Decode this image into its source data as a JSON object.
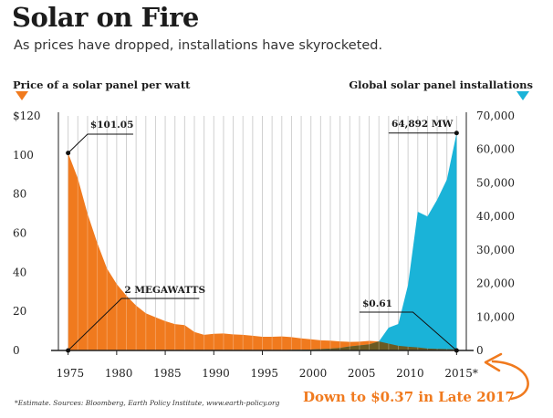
{
  "title": "Solar on Fire",
  "subtitle": "As prices have dropped, installations have skyrocketed.",
  "footnote": "*Estimate. Sources: Bloomberg, Earth Policy Institute, www.earth-policy.org",
  "colors": {
    "price": "#f07a1e",
    "installs": "#1ab3d8",
    "overlap": "#6b5a22",
    "grid": "#d0d0d0",
    "axis": "#222222"
  },
  "chart_data": {
    "type": "area",
    "x_labels": [
      "1975",
      "1980",
      "1985",
      "1990",
      "1995",
      "2000",
      "2005",
      "2010",
      "2015*"
    ],
    "x": [
      1975,
      1976,
      1977,
      1978,
      1979,
      1980,
      1981,
      1982,
      1983,
      1984,
      1985,
      1986,
      1987,
      1988,
      1989,
      1990,
      1991,
      1992,
      1993,
      1994,
      1995,
      1996,
      1997,
      1998,
      1999,
      2000,
      2001,
      2002,
      2003,
      2004,
      2005,
      2006,
      2007,
      2008,
      2009,
      2010,
      2011,
      2012,
      2013,
      2014,
      2015
    ],
    "xlim": [
      1974,
      2016
    ],
    "series": [
      {
        "name": "Price of a solar panel per watt",
        "legend_marker_color": "#f07a1e",
        "axis": "left",
        "ylim": [
          0,
          120
        ],
        "y_ticks": [
          "$120",
          "100",
          "80",
          "60",
          "40",
          "20",
          "0"
        ],
        "values": [
          101.05,
          88,
          70,
          55,
          42,
          34,
          28,
          23,
          19,
          17,
          15,
          13.5,
          13,
          9.5,
          8,
          8.5,
          8.7,
          8.2,
          8,
          7.5,
          7,
          7,
          7.2,
          6.8,
          6.2,
          5.7,
          5.2,
          5,
          4.6,
          4.4,
          4.5,
          4.9,
          4.6,
          3.5,
          2.4,
          1.9,
          1.6,
          1,
          0.8,
          0.7,
          0.61
        ]
      },
      {
        "name": "Global solar panel installations",
        "legend_marker_color": "#1ab3d8",
        "axis": "right",
        "unit": "MW",
        "ylim": [
          0,
          70000
        ],
        "y_ticks": [
          "70,000",
          "60,000",
          "50,000",
          "40,000",
          "30,000",
          "20,000",
          "10,000",
          "0"
        ],
        "values": [
          2,
          3,
          4,
          5,
          6,
          7,
          8,
          10,
          12,
          15,
          18,
          22,
          28,
          35,
          40,
          46,
          55,
          58,
          62,
          70,
          78,
          90,
          120,
          155,
          200,
          280,
          400,
          540,
          750,
          1200,
          1500,
          1800,
          2700,
          6800,
          7900,
          19500,
          41400,
          40000,
          45000,
          51000,
          64892
        ]
      }
    ],
    "annotations": {
      "peak_price": "$101.05",
      "start_installs": "2 MEGAWATTS",
      "end_installs": "64,892 MW",
      "end_price": "$0.61",
      "callout": "Down to $0.37 in Late 2017"
    }
  }
}
